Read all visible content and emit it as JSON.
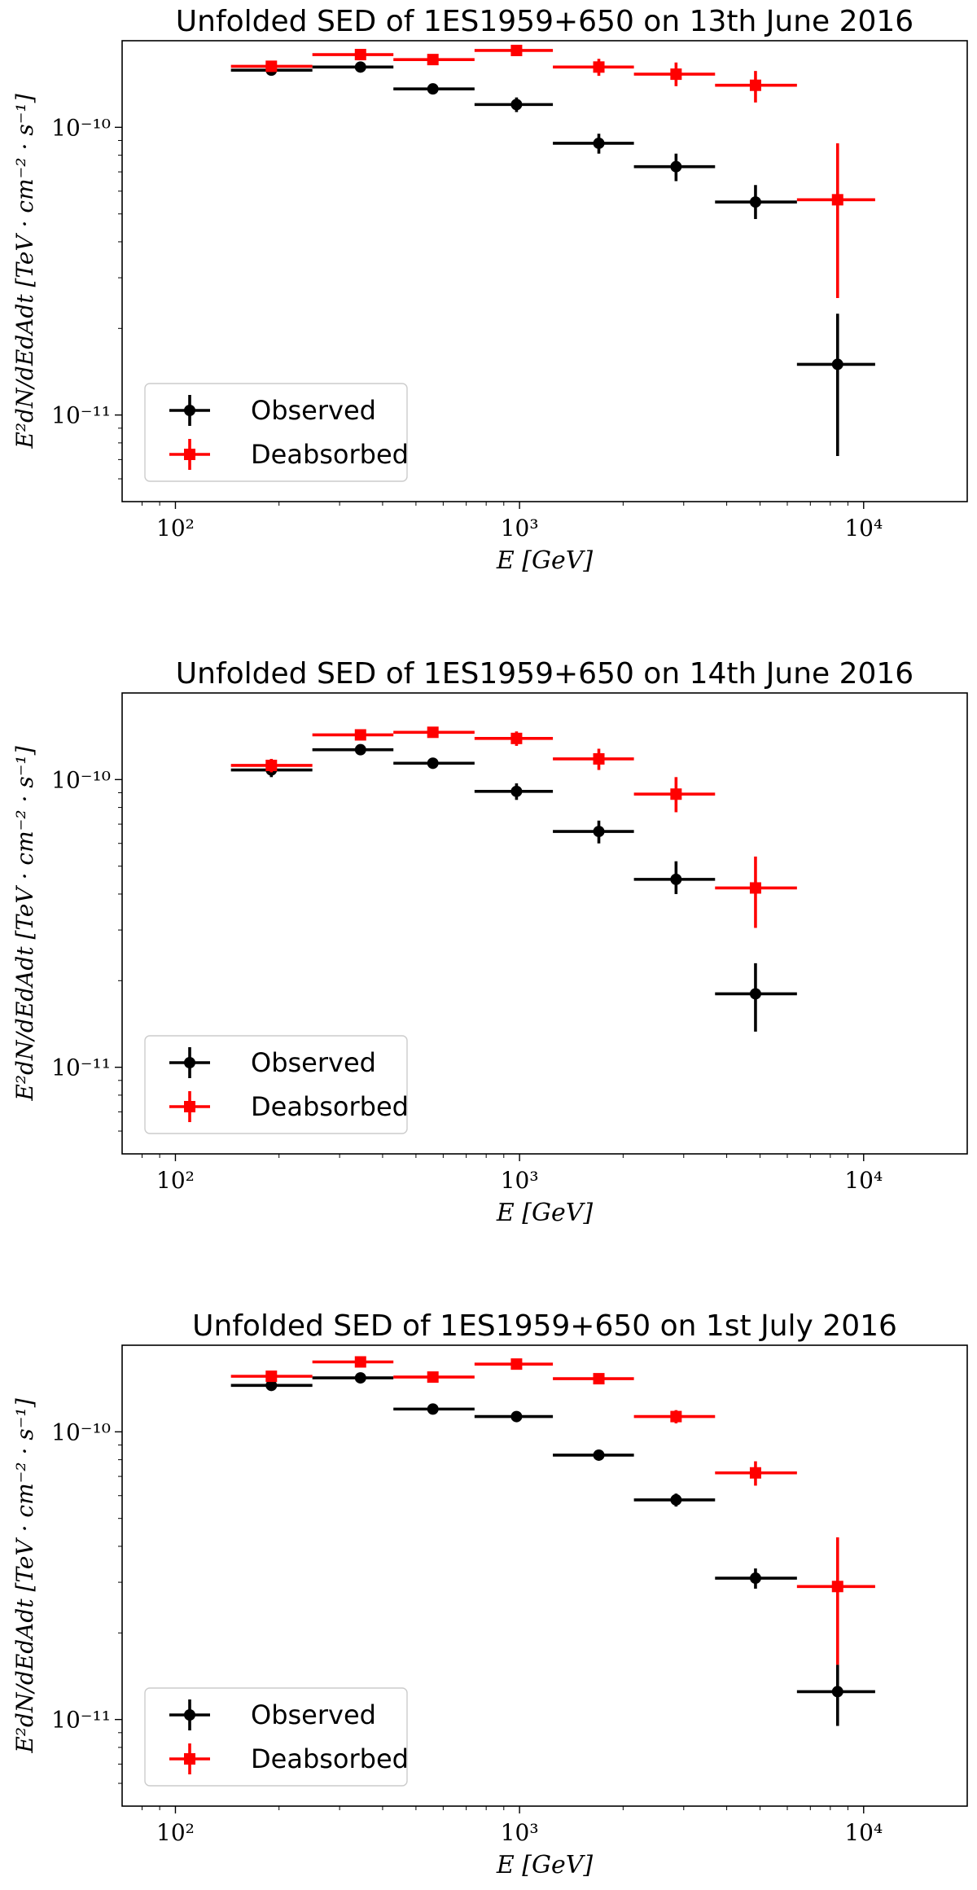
{
  "chart_data": [
    {
      "type": "scatter",
      "title": "Unfolded SED of 1ES1959+650 on 13th June 2016",
      "xlabel": "E [GeV]",
      "ylabel": "E²dN/dEdAdt [TeV · cm⁻² · s⁻¹]",
      "xscale": "log",
      "yscale": "log",
      "xlim": [
        70,
        20000
      ],
      "ylim": [
        5e-12,
        2e-10
      ],
      "xticks": [
        {
          "value": 100,
          "label": "10²"
        },
        {
          "value": 1000,
          "label": "10³"
        },
        {
          "value": 10000,
          "label": "10⁴"
        }
      ],
      "yticks": [
        {
          "value": 1e-11,
          "label": "10⁻¹¹"
        },
        {
          "value": 1e-10,
          "label": "10⁻¹⁰"
        }
      ],
      "legend": {
        "position": "lower-left",
        "entries": [
          "Observed",
          "Deabsorbed"
        ]
      },
      "series": [
        {
          "name": "Observed",
          "color": "#000000",
          "marker": "circle",
          "points": [
            {
              "x": 190,
              "xlo": 145,
              "xhi": 250,
              "y": 1.58e-10,
              "ylo": 1.52e-10,
              "yhi": 1.64e-10
            },
            {
              "x": 345,
              "xlo": 250,
              "xhi": 430,
              "y": 1.62e-10,
              "ylo": 1.57e-10,
              "yhi": 1.67e-10
            },
            {
              "x": 560,
              "xlo": 430,
              "xhi": 740,
              "y": 1.36e-10,
              "ylo": 1.31e-10,
              "yhi": 1.41e-10
            },
            {
              "x": 980,
              "xlo": 740,
              "xhi": 1250,
              "y": 1.2e-10,
              "ylo": 1.13e-10,
              "yhi": 1.27e-10
            },
            {
              "x": 1700,
              "xlo": 1250,
              "xhi": 2150,
              "y": 8.8e-11,
              "ylo": 8.1e-11,
              "yhi": 9.5e-11
            },
            {
              "x": 2850,
              "xlo": 2150,
              "xhi": 3700,
              "y": 7.3e-11,
              "ylo": 6.5e-11,
              "yhi": 8.1e-11
            },
            {
              "x": 4850,
              "xlo": 3700,
              "xhi": 6400,
              "y": 5.5e-11,
              "ylo": 4.8e-11,
              "yhi": 6.3e-11
            },
            {
              "x": 8400,
              "xlo": 6400,
              "xhi": 10800,
              "y": 1.5e-11,
              "ylo": 7.2e-12,
              "yhi": 2.25e-11
            }
          ]
        },
        {
          "name": "Deabsorbed",
          "color": "#ff0000",
          "marker": "square",
          "points": [
            {
              "x": 190,
              "xlo": 145,
              "xhi": 250,
              "y": 1.63e-10,
              "ylo": 1.56e-10,
              "yhi": 1.7e-10
            },
            {
              "x": 345,
              "xlo": 250,
              "xhi": 430,
              "y": 1.79e-10,
              "ylo": 1.73e-10,
              "yhi": 1.85e-10
            },
            {
              "x": 560,
              "xlo": 430,
              "xhi": 740,
              "y": 1.72e-10,
              "ylo": 1.65e-10,
              "yhi": 1.79e-10
            },
            {
              "x": 980,
              "xlo": 740,
              "xhi": 1250,
              "y": 1.85e-10,
              "ylo": 1.77e-10,
              "yhi": 1.93e-10
            },
            {
              "x": 1700,
              "xlo": 1250,
              "xhi": 2150,
              "y": 1.62e-10,
              "ylo": 1.51e-10,
              "yhi": 1.73e-10
            },
            {
              "x": 2850,
              "xlo": 2150,
              "xhi": 3700,
              "y": 1.53e-10,
              "ylo": 1.39e-10,
              "yhi": 1.68e-10
            },
            {
              "x": 4850,
              "xlo": 3700,
              "xhi": 6400,
              "y": 1.4e-10,
              "ylo": 1.22e-10,
              "yhi": 1.57e-10
            },
            {
              "x": 8400,
              "xlo": 6400,
              "xhi": 10800,
              "y": 5.6e-11,
              "ylo": 2.55e-11,
              "yhi": 8.8e-11
            }
          ]
        }
      ]
    },
    {
      "type": "scatter",
      "title": "Unfolded SED of 1ES1959+650 on 14th June 2016",
      "xlabel": "E [GeV]",
      "ylabel": "E²dN/dEdAdt [TeV · cm⁻² · s⁻¹]",
      "xscale": "log",
      "yscale": "log",
      "xlim": [
        70,
        20000
      ],
      "ylim": [
        5e-12,
        2e-10
      ],
      "xticks": [
        {
          "value": 100,
          "label": "10²"
        },
        {
          "value": 1000,
          "label": "10³"
        },
        {
          "value": 10000,
          "label": "10⁴"
        }
      ],
      "yticks": [
        {
          "value": 1e-11,
          "label": "10⁻¹¹"
        },
        {
          "value": 1e-10,
          "label": "10⁻¹⁰"
        }
      ],
      "legend": {
        "position": "lower-left",
        "entries": [
          "Observed",
          "Deabsorbed"
        ]
      },
      "series": [
        {
          "name": "Observed",
          "color": "#000000",
          "marker": "circle",
          "points": [
            {
              "x": 190,
              "xlo": 145,
              "xhi": 250,
              "y": 1.08e-10,
              "ylo": 1.02e-10,
              "yhi": 1.14e-10
            },
            {
              "x": 345,
              "xlo": 250,
              "xhi": 430,
              "y": 1.27e-10,
              "ylo": 1.22e-10,
              "yhi": 1.32e-10
            },
            {
              "x": 560,
              "xlo": 430,
              "xhi": 740,
              "y": 1.14e-10,
              "ylo": 1.09e-10,
              "yhi": 1.19e-10
            },
            {
              "x": 980,
              "xlo": 740,
              "xhi": 1250,
              "y": 9.1e-11,
              "ylo": 8.5e-11,
              "yhi": 9.7e-11
            },
            {
              "x": 1700,
              "xlo": 1250,
              "xhi": 2150,
              "y": 6.6e-11,
              "ylo": 6e-11,
              "yhi": 7.2e-11
            },
            {
              "x": 2850,
              "xlo": 2150,
              "xhi": 3700,
              "y": 4.5e-11,
              "ylo": 4e-11,
              "yhi": 5.2e-11
            },
            {
              "x": 4850,
              "xlo": 3700,
              "xhi": 6400,
              "y": 1.8e-11,
              "ylo": 1.33e-11,
              "yhi": 2.3e-11
            }
          ]
        },
        {
          "name": "Deabsorbed",
          "color": "#ff0000",
          "marker": "square",
          "points": [
            {
              "x": 190,
              "xlo": 145,
              "xhi": 250,
              "y": 1.12e-10,
              "ylo": 1.06e-10,
              "yhi": 1.18e-10
            },
            {
              "x": 345,
              "xlo": 250,
              "xhi": 430,
              "y": 1.43e-10,
              "ylo": 1.37e-10,
              "yhi": 1.49e-10
            },
            {
              "x": 560,
              "xlo": 430,
              "xhi": 740,
              "y": 1.46e-10,
              "ylo": 1.4e-10,
              "yhi": 1.52e-10
            },
            {
              "x": 980,
              "xlo": 740,
              "xhi": 1250,
              "y": 1.39e-10,
              "ylo": 1.31e-10,
              "yhi": 1.47e-10
            },
            {
              "x": 1700,
              "xlo": 1250,
              "xhi": 2150,
              "y": 1.18e-10,
              "ylo": 1.08e-10,
              "yhi": 1.28e-10
            },
            {
              "x": 2850,
              "xlo": 2150,
              "xhi": 3700,
              "y": 8.9e-11,
              "ylo": 7.7e-11,
              "yhi": 1.02e-10
            },
            {
              "x": 4850,
              "xlo": 3700,
              "xhi": 6400,
              "y": 4.2e-11,
              "ylo": 3.05e-11,
              "yhi": 5.4e-11
            }
          ]
        }
      ]
    },
    {
      "type": "scatter",
      "title": "Unfolded SED of 1ES1959+650 on 1st July 2016",
      "xlabel": "E [GeV]",
      "ylabel": "E²dN/dEdAdt [TeV · cm⁻² · s⁻¹]",
      "xscale": "log",
      "yscale": "log",
      "xlim": [
        70,
        20000
      ],
      "ylim": [
        5e-12,
        2e-10
      ],
      "xticks": [
        {
          "value": 100,
          "label": "10²"
        },
        {
          "value": 1000,
          "label": "10³"
        },
        {
          "value": 10000,
          "label": "10⁴"
        }
      ],
      "yticks": [
        {
          "value": 1e-11,
          "label": "10⁻¹¹"
        },
        {
          "value": 1e-10,
          "label": "10⁻¹⁰"
        }
      ],
      "legend": {
        "position": "lower-left",
        "entries": [
          "Observed",
          "Deabsorbed"
        ]
      },
      "series": [
        {
          "name": "Observed",
          "color": "#000000",
          "marker": "circle",
          "points": [
            {
              "x": 190,
              "xlo": 145,
              "xhi": 250,
              "y": 1.45e-10,
              "ylo": 1.41e-10,
              "yhi": 1.49e-10
            },
            {
              "x": 345,
              "xlo": 250,
              "xhi": 430,
              "y": 1.54e-10,
              "ylo": 1.5e-10,
              "yhi": 1.58e-10
            },
            {
              "x": 560,
              "xlo": 430,
              "xhi": 740,
              "y": 1.2e-10,
              "ylo": 1.17e-10,
              "yhi": 1.23e-10
            },
            {
              "x": 980,
              "xlo": 740,
              "xhi": 1250,
              "y": 1.13e-10,
              "ylo": 1.1e-10,
              "yhi": 1.16e-10
            },
            {
              "x": 1700,
              "xlo": 1250,
              "xhi": 2150,
              "y": 8.3e-11,
              "ylo": 8e-11,
              "yhi": 8.6e-11
            },
            {
              "x": 2850,
              "xlo": 2150,
              "xhi": 3700,
              "y": 5.8e-11,
              "ylo": 5.5e-11,
              "yhi": 6.1e-11
            },
            {
              "x": 4850,
              "xlo": 3700,
              "xhi": 6400,
              "y": 3.1e-11,
              "ylo": 2.85e-11,
              "yhi": 3.35e-11
            },
            {
              "x": 8400,
              "xlo": 6400,
              "xhi": 10800,
              "y": 1.25e-11,
              "ylo": 9.5e-12,
              "yhi": 1.55e-11
            }
          ]
        },
        {
          "name": "Deabsorbed",
          "color": "#ff0000",
          "marker": "square",
          "points": [
            {
              "x": 190,
              "xlo": 145,
              "xhi": 250,
              "y": 1.56e-10,
              "ylo": 1.52e-10,
              "yhi": 1.6e-10
            },
            {
              "x": 345,
              "xlo": 250,
              "xhi": 430,
              "y": 1.75e-10,
              "ylo": 1.71e-10,
              "yhi": 1.79e-10
            },
            {
              "x": 560,
              "xlo": 430,
              "xhi": 740,
              "y": 1.55e-10,
              "ylo": 1.51e-10,
              "yhi": 1.59e-10
            },
            {
              "x": 980,
              "xlo": 740,
              "xhi": 1250,
              "y": 1.72e-10,
              "ylo": 1.68e-10,
              "yhi": 1.76e-10
            },
            {
              "x": 1700,
              "xlo": 1250,
              "xhi": 2150,
              "y": 1.53e-10,
              "ylo": 1.49e-10,
              "yhi": 1.57e-10
            },
            {
              "x": 2850,
              "xlo": 2150,
              "xhi": 3700,
              "y": 1.13e-10,
              "ylo": 1.07e-10,
              "yhi": 1.19e-10
            },
            {
              "x": 4850,
              "xlo": 3700,
              "xhi": 6400,
              "y": 7.2e-11,
              "ylo": 6.5e-11,
              "yhi": 7.9e-11
            },
            {
              "x": 8400,
              "xlo": 6400,
              "xhi": 10800,
              "y": 2.9e-11,
              "ylo": 1.55e-11,
              "yhi": 4.3e-11
            }
          ]
        }
      ]
    }
  ]
}
